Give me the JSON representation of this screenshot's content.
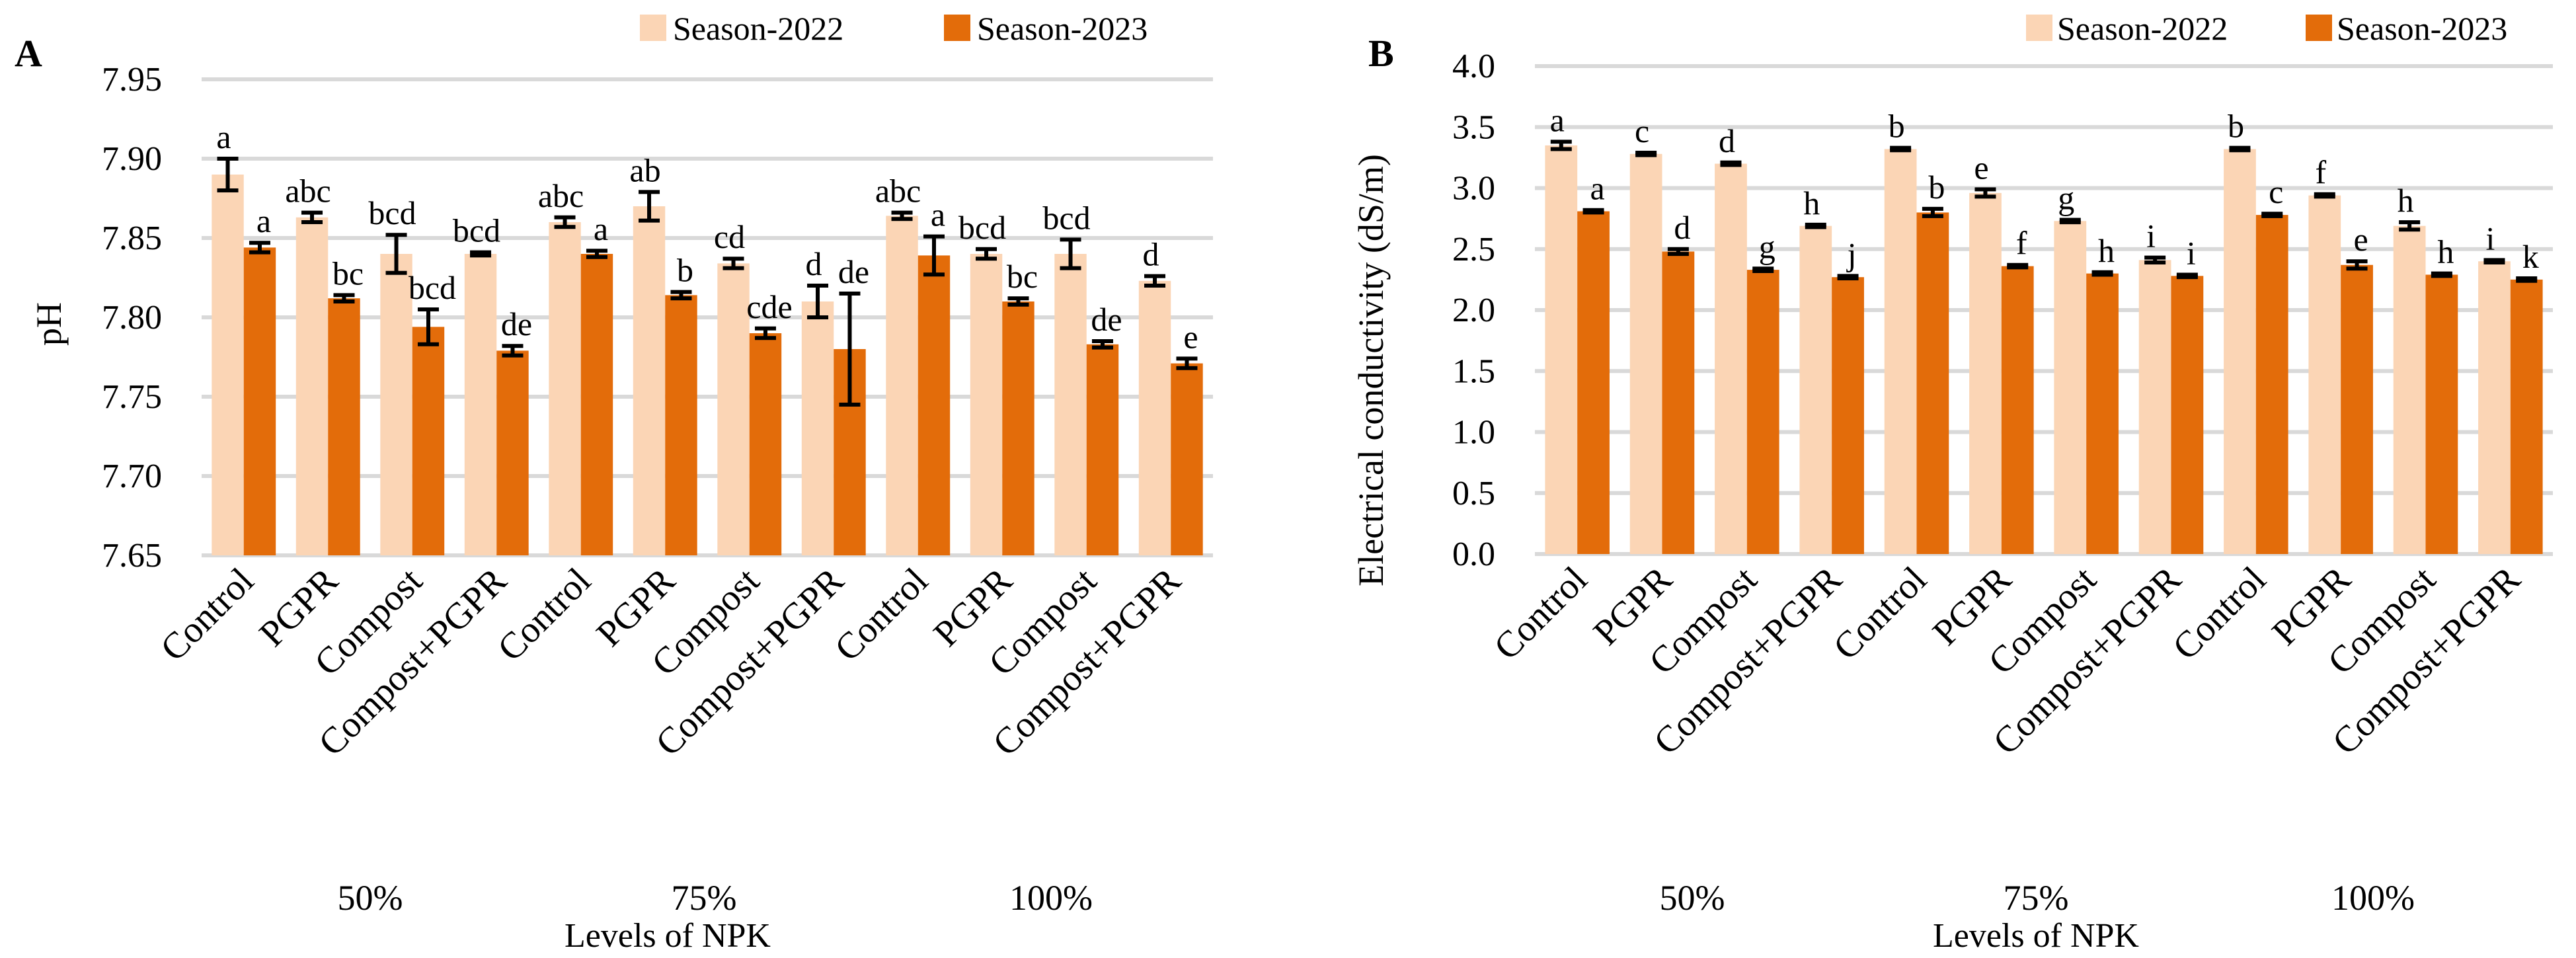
{
  "colors": {
    "season_2022": "#fbd5b5",
    "season_2023": "#e36c0a"
  },
  "chart_data": [
    {
      "panel_label": "A",
      "type": "bar",
      "title": "",
      "ylabel": "pH",
      "xlabel": "Levels of NPK",
      "ylim": [
        7.65,
        7.95
      ],
      "yticks": [
        "7.65",
        "7.70",
        "7.75",
        "7.80",
        "7.85",
        "7.90",
        "7.95"
      ],
      "grid": true,
      "legend_position": "top-right",
      "categories": [
        "Control",
        "PGPR",
        "Compost",
        "Compost+PGPR",
        "Control",
        "PGPR",
        "Compost",
        "Compost+PGPR",
        "Control",
        "PGPR",
        "Compost",
        "Compost+PGPR"
      ],
      "groups": [
        "50%",
        "75%",
        "100%"
      ],
      "series": [
        {
          "name": "Season-2022",
          "values": [
            7.89,
            7.863,
            7.84,
            7.84,
            7.86,
            7.87,
            7.834,
            7.81,
            7.864,
            7.84,
            7.84,
            7.823
          ],
          "errors": [
            0.01,
            0.003,
            0.012,
            0.001,
            0.003,
            0.009,
            0.003,
            0.01,
            0.002,
            0.003,
            0.009,
            0.003
          ],
          "letters": [
            "a",
            "abc",
            "bcd",
            "bcd",
            "abc",
            "ab",
            "cd",
            "d",
            "abc",
            "bcd",
            "bcd",
            "d"
          ]
        },
        {
          "name": "Season-2023",
          "values": [
            7.844,
            7.812,
            7.794,
            7.779,
            7.84,
            7.814,
            7.79,
            7.78,
            7.839,
            7.81,
            7.783,
            7.771
          ],
          "errors": [
            0.003,
            0.002,
            0.011,
            0.003,
            0.002,
            0.002,
            0.003,
            0.035,
            0.012,
            0.002,
            0.002,
            0.003
          ],
          "letters": [
            "a",
            "bc",
            "bcd",
            "de",
            "a",
            "b",
            "cde",
            "de",
            "a",
            "bc",
            "de",
            "e"
          ]
        }
      ]
    },
    {
      "panel_label": "B",
      "type": "bar",
      "title": "",
      "ylabel": "Electrical conductivity (dS/m)",
      "xlabel": "Levels of NPK",
      "ylim": [
        0,
        4
      ],
      "yticks": [
        "0.0",
        "0.5",
        "1.0",
        "1.5",
        "2.0",
        "2.5",
        "3.0",
        "3.5",
        "4.0"
      ],
      "grid": true,
      "legend_position": "top-right",
      "categories": [
        "Control",
        "PGPR",
        "Compost",
        "Compost+PGPR",
        "Control",
        "PGPR",
        "Compost",
        "Compost+PGPR",
        "Control",
        "PGPR",
        "Compost",
        "Compost+PGPR"
      ],
      "groups": [
        "50%",
        "75%",
        "100%"
      ],
      "series": [
        {
          "name": "Season-2022",
          "values": [
            3.35,
            3.28,
            3.2,
            2.69,
            3.32,
            2.96,
            2.73,
            2.41,
            3.32,
            2.94,
            2.69,
            2.4
          ],
          "errors": [
            0.03,
            0.01,
            0.01,
            0.01,
            0.01,
            0.03,
            0.01,
            0.02,
            0.01,
            0.01,
            0.03,
            0.01
          ],
          "letters": [
            "a",
            "c",
            "d",
            "h",
            "b",
            "e",
            "g",
            "i",
            "b",
            "f",
            "h",
            "i"
          ]
        },
        {
          "name": "Season-2023",
          "values": [
            2.81,
            2.48,
            2.33,
            2.27,
            2.8,
            2.36,
            2.3,
            2.28,
            2.78,
            2.37,
            2.29,
            2.25
          ],
          "errors": [
            0.01,
            0.02,
            0.01,
            0.01,
            0.03,
            0.01,
            0.01,
            0.01,
            0.01,
            0.03,
            0.01,
            0.01
          ],
          "letters": [
            "a",
            "d",
            "g",
            "j",
            "b",
            "f",
            "h",
            "i",
            "c",
            "e",
            "h",
            "k"
          ]
        }
      ]
    }
  ]
}
